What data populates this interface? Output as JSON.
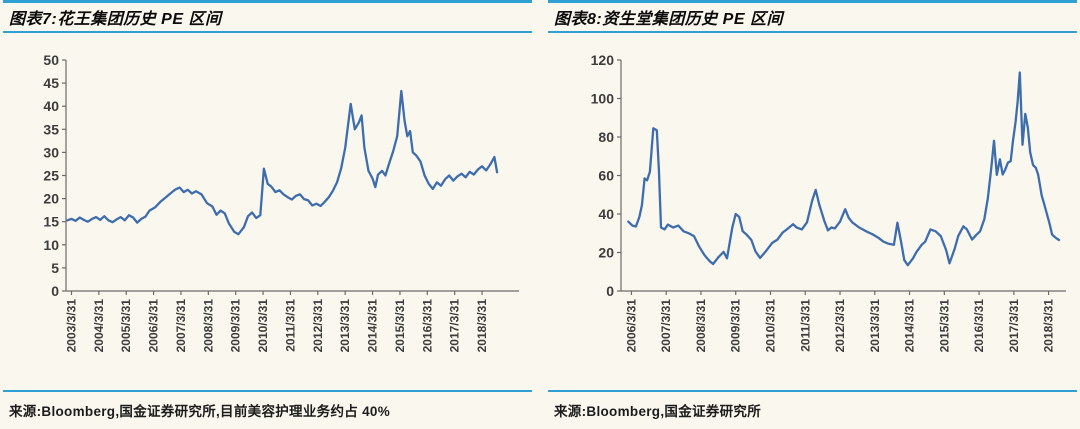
{
  "page": {
    "background_color": "#FAF7EE",
    "rule_color": "#2FA0D4",
    "line_color": "#3E6DAD"
  },
  "chart_data": [
    {
      "type": "line",
      "title": "图表7:花王集团历史 PE 区间",
      "source": "来源:Bloomberg,国金证券研究所,目前美容护理业务约占 40%",
      "grid": false,
      "legend": "none",
      "line_color": "#3E6DAD",
      "x_range": [
        2003.05,
        2019.6
      ],
      "y_range": [
        0,
        50
      ],
      "y_ticks": [
        0,
        5,
        10,
        15,
        20,
        25,
        30,
        35,
        40,
        45,
        50
      ],
      "x_ticks": [
        {
          "x": 2003.25,
          "label": "2003/3/31"
        },
        {
          "x": 2004.25,
          "label": "2004/3/31"
        },
        {
          "x": 2005.25,
          "label": "2005/3/31"
        },
        {
          "x": 2006.25,
          "label": "2006/3/31"
        },
        {
          "x": 2007.25,
          "label": "2007/3/31"
        },
        {
          "x": 2008.25,
          "label": "2008/3/31"
        },
        {
          "x": 2009.25,
          "label": "2009/3/31"
        },
        {
          "x": 2010.25,
          "label": "2010/3/31"
        },
        {
          "x": 2011.25,
          "label": "2011/3/31"
        },
        {
          "x": 2012.25,
          "label": "2012/3/31"
        },
        {
          "x": 2013.25,
          "label": "2013/3/31"
        },
        {
          "x": 2014.25,
          "label": "2014/3/31"
        },
        {
          "x": 2015.25,
          "label": "2015/3/31"
        },
        {
          "x": 2016.25,
          "label": "2016/3/31"
        },
        {
          "x": 2017.25,
          "label": "2017/3/31"
        },
        {
          "x": 2018.25,
          "label": "2018/3/31"
        }
      ],
      "series": [
        {
          "name": "花王集团历史PE",
          "points": [
            [
              2003.1,
              15.3
            ],
            [
              2003.25,
              15.6
            ],
            [
              2003.4,
              15.2
            ],
            [
              2003.55,
              15.9
            ],
            [
              2003.7,
              15.4
            ],
            [
              2003.85,
              15.0
            ],
            [
              2004.0,
              15.6
            ],
            [
              2004.15,
              16.0
            ],
            [
              2004.3,
              15.4
            ],
            [
              2004.45,
              16.2
            ],
            [
              2004.6,
              15.3
            ],
            [
              2004.75,
              14.9
            ],
            [
              2004.9,
              15.5
            ],
            [
              2005.05,
              16.0
            ],
            [
              2005.2,
              15.3
            ],
            [
              2005.35,
              16.4
            ],
            [
              2005.5,
              15.9
            ],
            [
              2005.65,
              14.8
            ],
            [
              2005.8,
              15.6
            ],
            [
              2005.95,
              16.1
            ],
            [
              2006.1,
              17.4
            ],
            [
              2006.3,
              18.1
            ],
            [
              2006.5,
              19.3
            ],
            [
              2006.7,
              20.3
            ],
            [
              2006.9,
              21.3
            ],
            [
              2007.05,
              22.0
            ],
            [
              2007.2,
              22.4
            ],
            [
              2007.35,
              21.4
            ],
            [
              2007.5,
              21.9
            ],
            [
              2007.65,
              21.1
            ],
            [
              2007.8,
              21.6
            ],
            [
              2008.0,
              20.9
            ],
            [
              2008.2,
              19.0
            ],
            [
              2008.4,
              18.3
            ],
            [
              2008.55,
              16.5
            ],
            [
              2008.7,
              17.4
            ],
            [
              2008.85,
              16.8
            ],
            [
              2009.0,
              14.6
            ],
            [
              2009.2,
              12.8
            ],
            [
              2009.35,
              12.3
            ],
            [
              2009.55,
              13.8
            ],
            [
              2009.7,
              16.2
            ],
            [
              2009.85,
              17.0
            ],
            [
              2010.0,
              15.8
            ],
            [
              2010.15,
              16.4
            ],
            [
              2010.28,
              26.5
            ],
            [
              2010.42,
              23.2
            ],
            [
              2010.55,
              22.6
            ],
            [
              2010.7,
              21.4
            ],
            [
              2010.85,
              21.8
            ],
            [
              2011.0,
              20.9
            ],
            [
              2011.15,
              20.3
            ],
            [
              2011.3,
              19.8
            ],
            [
              2011.45,
              20.6
            ],
            [
              2011.6,
              20.9
            ],
            [
              2011.75,
              19.9
            ],
            [
              2011.9,
              19.6
            ],
            [
              2012.05,
              18.5
            ],
            [
              2012.2,
              18.9
            ],
            [
              2012.35,
              18.4
            ],
            [
              2012.5,
              19.3
            ],
            [
              2012.65,
              20.3
            ],
            [
              2012.8,
              21.7
            ],
            [
              2012.95,
              23.5
            ],
            [
              2013.1,
              26.5
            ],
            [
              2013.25,
              31.0
            ],
            [
              2013.45,
              40.5
            ],
            [
              2013.6,
              35.0
            ],
            [
              2013.75,
              36.5
            ],
            [
              2013.85,
              38.0
            ],
            [
              2013.95,
              31.0
            ],
            [
              2014.1,
              26.0
            ],
            [
              2014.25,
              24.3
            ],
            [
              2014.35,
              22.5
            ],
            [
              2014.45,
              25.2
            ],
            [
              2014.6,
              26.0
            ],
            [
              2014.72,
              25.0
            ],
            [
              2014.85,
              27.5
            ],
            [
              2015.0,
              30.2
            ],
            [
              2015.15,
              33.5
            ],
            [
              2015.3,
              43.3
            ],
            [
              2015.42,
              36.8
            ],
            [
              2015.52,
              33.5
            ],
            [
              2015.62,
              34.6
            ],
            [
              2015.72,
              30.0
            ],
            [
              2015.85,
              29.3
            ],
            [
              2016.0,
              28.0
            ],
            [
              2016.15,
              25.0
            ],
            [
              2016.3,
              23.2
            ],
            [
              2016.45,
              22.1
            ],
            [
              2016.6,
              23.5
            ],
            [
              2016.75,
              22.8
            ],
            [
              2016.9,
              24.2
            ],
            [
              2017.05,
              25.0
            ],
            [
              2017.2,
              23.9
            ],
            [
              2017.35,
              24.8
            ],
            [
              2017.5,
              25.4
            ],
            [
              2017.65,
              24.6
            ],
            [
              2017.8,
              25.8
            ],
            [
              2017.95,
              25.2
            ],
            [
              2018.1,
              26.3
            ],
            [
              2018.25,
              27.0
            ],
            [
              2018.4,
              26.1
            ],
            [
              2018.55,
              27.4
            ],
            [
              2018.7,
              29.0
            ],
            [
              2018.8,
              25.7
            ]
          ]
        }
      ]
    },
    {
      "type": "line",
      "title": "图表8:资生堂集团历史 PE 区间",
      "source": "来源:Bloomberg,国金证券研究所",
      "grid": false,
      "legend": "none",
      "line_color": "#3E6DAD",
      "x_range": [
        2005.95,
        2018.75
      ],
      "y_range": [
        0,
        120
      ],
      "y_ticks": [
        0,
        20,
        40,
        60,
        80,
        100,
        120
      ],
      "x_ticks": [
        {
          "x": 2006.25,
          "label": "2006/3/31"
        },
        {
          "x": 2007.25,
          "label": "2007/3/31"
        },
        {
          "x": 2008.25,
          "label": "2008/3/31"
        },
        {
          "x": 2009.25,
          "label": "2009/3/31"
        },
        {
          "x": 2010.25,
          "label": "2010/3/31"
        },
        {
          "x": 2011.25,
          "label": "2011/3/31"
        },
        {
          "x": 2012.25,
          "label": "2012/3/31"
        },
        {
          "x": 2013.25,
          "label": "2013/3/31"
        },
        {
          "x": 2014.25,
          "label": "2014/3/31"
        },
        {
          "x": 2015.25,
          "label": "2015/3/31"
        },
        {
          "x": 2016.25,
          "label": "2016/3/31"
        },
        {
          "x": 2017.25,
          "label": "2017/3/31"
        },
        {
          "x": 2018.25,
          "label": "2018/3/31"
        }
      ],
      "series": [
        {
          "name": "资生堂集团历史PE",
          "points": [
            [
              2006.16,
              36.0
            ],
            [
              2006.28,
              34.0
            ],
            [
              2006.38,
              33.5
            ],
            [
              2006.48,
              38.5
            ],
            [
              2006.55,
              44.5
            ],
            [
              2006.63,
              58.5
            ],
            [
              2006.7,
              57.5
            ],
            [
              2006.78,
              62.0
            ],
            [
              2006.88,
              84.5
            ],
            [
              2006.98,
              83.5
            ],
            [
              2007.04,
              63.0
            ],
            [
              2007.1,
              33.0
            ],
            [
              2007.2,
              32.0
            ],
            [
              2007.3,
              34.5
            ],
            [
              2007.45,
              33.0
            ],
            [
              2007.6,
              34.0
            ],
            [
              2007.75,
              31.0
            ],
            [
              2007.9,
              30.0
            ],
            [
              2008.05,
              28.5
            ],
            [
              2008.2,
              23.0
            ],
            [
              2008.35,
              18.7
            ],
            [
              2008.5,
              15.5
            ],
            [
              2008.6,
              14.0
            ],
            [
              2008.75,
              17.5
            ],
            [
              2008.9,
              20.3
            ],
            [
              2009.0,
              17.0
            ],
            [
              2009.15,
              33.0
            ],
            [
              2009.25,
              40.0
            ],
            [
              2009.35,
              38.5
            ],
            [
              2009.45,
              31.0
            ],
            [
              2009.55,
              29.5
            ],
            [
              2009.7,
              26.5
            ],
            [
              2009.82,
              20.5
            ],
            [
              2009.95,
              17.2
            ],
            [
              2010.1,
              20.3
            ],
            [
              2010.3,
              25.0
            ],
            [
              2010.45,
              26.7
            ],
            [
              2010.6,
              30.4
            ],
            [
              2010.72,
              32.0
            ],
            [
              2010.9,
              34.7
            ],
            [
              2011.0,
              33.0
            ],
            [
              2011.15,
              32.0
            ],
            [
              2011.3,
              35.7
            ],
            [
              2011.45,
              47.0
            ],
            [
              2011.55,
              52.5
            ],
            [
              2011.65,
              45.0
            ],
            [
              2011.8,
              36.3
            ],
            [
              2011.9,
              31.5
            ],
            [
              2012.0,
              33.0
            ],
            [
              2012.1,
              32.5
            ],
            [
              2012.25,
              36.0
            ],
            [
              2012.4,
              42.5
            ],
            [
              2012.5,
              38.0
            ],
            [
              2012.6,
              35.7
            ],
            [
              2012.8,
              33.0
            ],
            [
              2013.0,
              31.0
            ],
            [
              2013.2,
              29.3
            ],
            [
              2013.35,
              27.7
            ],
            [
              2013.5,
              25.6
            ],
            [
              2013.65,
              24.5
            ],
            [
              2013.8,
              24.0
            ],
            [
              2013.9,
              35.5
            ],
            [
              2014.0,
              26.0
            ],
            [
              2014.1,
              16.0
            ],
            [
              2014.2,
              13.4
            ],
            [
              2014.35,
              17.0
            ],
            [
              2014.45,
              20.3
            ],
            [
              2014.6,
              24.0
            ],
            [
              2014.7,
              25.6
            ],
            [
              2014.85,
              32.0
            ],
            [
              2015.0,
              31.0
            ],
            [
              2015.15,
              28.5
            ],
            [
              2015.3,
              21.3
            ],
            [
              2015.4,
              14.4
            ],
            [
              2015.55,
              22.0
            ],
            [
              2015.65,
              28.5
            ],
            [
              2015.8,
              33.6
            ],
            [
              2015.9,
              32.0
            ],
            [
              2016.05,
              26.7
            ],
            [
              2016.16,
              29.0
            ],
            [
              2016.28,
              31.0
            ],
            [
              2016.4,
              37.3
            ],
            [
              2016.5,
              48.0
            ],
            [
              2016.6,
              64.0
            ],
            [
              2016.68,
              78.0
            ],
            [
              2016.76,
              60.3
            ],
            [
              2016.85,
              68.4
            ],
            [
              2016.93,
              60.5
            ],
            [
              2017.0,
              63.0
            ],
            [
              2017.08,
              66.7
            ],
            [
              2017.16,
              67.5
            ],
            [
              2017.22,
              77.3
            ],
            [
              2017.3,
              88.0
            ],
            [
              2017.36,
              98.7
            ],
            [
              2017.42,
              113.5
            ],
            [
              2017.5,
              76.0
            ],
            [
              2017.58,
              92.0
            ],
            [
              2017.65,
              85.0
            ],
            [
              2017.72,
              72.0
            ],
            [
              2017.8,
              65.5
            ],
            [
              2017.88,
              64.0
            ],
            [
              2017.95,
              60.3
            ],
            [
              2018.05,
              49.6
            ],
            [
              2018.12,
              45.3
            ],
            [
              2018.2,
              40.0
            ],
            [
              2018.28,
              34.7
            ],
            [
              2018.35,
              29.3
            ],
            [
              2018.45,
              27.7
            ],
            [
              2018.55,
              26.5
            ]
          ]
        }
      ]
    }
  ]
}
